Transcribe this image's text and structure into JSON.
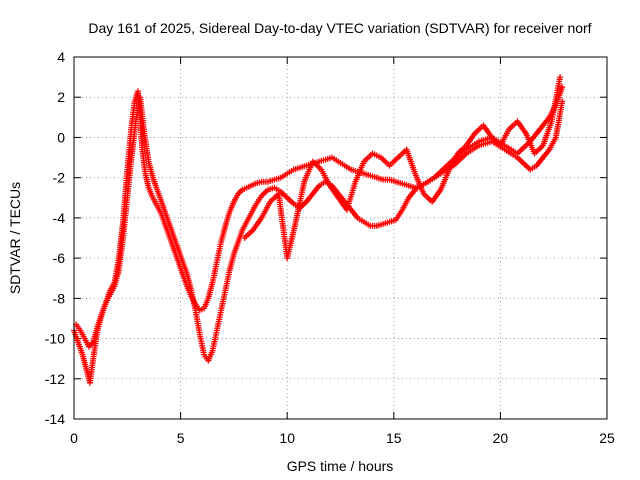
{
  "chart_data": {
    "type": "scatter",
    "title": "Day 161 of 2025, Sidereal Day-to-day VTEC variation (SDTVAR) for receiver norf",
    "xlabel": "GPS time / hours",
    "ylabel": "SDTVAR / TECUs",
    "xlim": [
      0,
      25
    ],
    "ylim": [
      -14,
      4
    ],
    "xticks": [
      0,
      5,
      10,
      15,
      20,
      25
    ],
    "yticks": [
      -14,
      -12,
      -10,
      -8,
      -6,
      -4,
      -2,
      0,
      2,
      4
    ],
    "grid": true,
    "marker": "+",
    "marker_color": "#ff0000",
    "series": [
      {
        "name": "SDTVAR",
        "x": [
          0.0,
          0.2,
          0.4,
          0.6,
          0.75,
          0.9,
          1.1,
          1.3,
          1.5,
          1.7,
          1.9,
          2.1,
          2.3,
          2.5,
          2.7,
          2.85,
          3.0,
          3.1,
          3.2,
          3.35,
          3.5,
          3.7,
          3.9,
          4.1,
          4.3,
          4.5,
          4.7,
          4.9,
          5.1,
          5.3,
          5.5,
          5.7,
          5.9,
          6.1,
          6.3,
          6.5,
          6.7,
          6.9,
          7.1,
          7.3,
          7.5,
          7.7,
          7.9,
          8.1,
          8.3,
          8.5,
          8.8,
          9.1,
          9.4,
          9.7,
          10.0,
          10.3,
          10.6,
          10.9,
          11.2,
          11.5,
          11.8,
          12.1,
          12.4,
          12.7,
          13.0,
          13.3,
          13.6,
          13.9,
          14.2,
          14.5,
          14.8,
          15.1,
          15.4,
          15.7,
          16.0,
          16.3,
          16.6,
          16.9,
          17.2,
          17.5,
          17.8,
          18.1,
          18.4,
          18.7,
          19.0,
          19.3,
          19.6,
          19.9,
          20.2,
          20.5,
          20.8,
          21.1,
          21.4,
          21.7,
          22.0,
          22.3,
          22.6,
          22.9
        ],
        "y": [
          -9.6,
          -10.2,
          -10.8,
          -11.6,
          -12.2,
          -11.0,
          -9.6,
          -8.8,
          -8.2,
          -7.6,
          -7.2,
          -6.0,
          -4.2,
          -1.6,
          0.6,
          1.8,
          2.3,
          1.0,
          -0.6,
          -1.8,
          -2.5,
          -3.0,
          -3.4,
          -3.8,
          -4.4,
          -5.0,
          -5.6,
          -6.2,
          -6.8,
          -7.4,
          -7.9,
          -8.3,
          -8.6,
          -8.5,
          -8.0,
          -7.2,
          -6.2,
          -5.2,
          -4.4,
          -3.7,
          -3.2,
          -2.8,
          -2.6,
          -2.5,
          -2.4,
          -2.3,
          -2.2,
          -2.2,
          -2.1,
          -2.0,
          -1.8,
          -1.6,
          -1.5,
          -1.4,
          -1.3,
          -1.2,
          -1.1,
          -1.0,
          -1.2,
          -1.4,
          -1.6,
          -1.7,
          -1.8,
          -1.9,
          -2.0,
          -2.1,
          -2.1,
          -2.2,
          -2.3,
          -2.4,
          -2.5,
          -2.4,
          -2.2,
          -2.0,
          -1.7,
          -1.4,
          -1.1,
          -0.8,
          -0.6,
          -0.4,
          -0.2,
          -0.1,
          0.0,
          -0.2,
          -0.4,
          -0.6,
          -0.8,
          -0.5,
          -0.2,
          0.2,
          0.6,
          1.0,
          1.6,
          2.5
        ]
      },
      {
        "name": "SDTVAR",
        "x": [
          0.1,
          0.3,
          0.5,
          0.7,
          0.9,
          1.1,
          1.3,
          1.5,
          1.7,
          1.9,
          2.1,
          2.3,
          2.5,
          2.7,
          2.9,
          3.1,
          3.3,
          3.5,
          3.7,
          3.9,
          4.1,
          4.3,
          4.5,
          4.7,
          4.9,
          5.1,
          5.3,
          5.5,
          5.7,
          5.9,
          6.1,
          6.3,
          6.5,
          6.7,
          6.9,
          7.1,
          7.3,
          7.5,
          7.7,
          7.9,
          8.2,
          8.5,
          8.8,
          9.1,
          9.4,
          9.7,
          10.0,
          10.3,
          10.6,
          10.9,
          11.2,
          11.5,
          11.8,
          12.1,
          12.4,
          12.7,
          13.0,
          13.3,
          13.6,
          13.9,
          14.2,
          14.5,
          14.8,
          15.1,
          15.4,
          15.7,
          16.0,
          16.3,
          16.6,
          16.9,
          17.2,
          17.5,
          17.8,
          18.1,
          18.4,
          18.7,
          19.0,
          19.3,
          19.6,
          19.9,
          20.2,
          20.5,
          20.8,
          21.1,
          21.4,
          21.7,
          22.0,
          22.3,
          22.6,
          22.9
        ],
        "y": [
          -9.3,
          -9.6,
          -10.0,
          -10.4,
          -10.2,
          -9.4,
          -8.8,
          -8.2,
          -7.8,
          -7.4,
          -6.6,
          -5.0,
          -3.0,
          -1.0,
          0.8,
          2.0,
          0.2,
          -1.2,
          -2.0,
          -2.6,
          -3.2,
          -3.8,
          -4.4,
          -5.0,
          -5.6,
          -6.2,
          -6.8,
          -7.6,
          -8.6,
          -9.8,
          -10.8,
          -11.1,
          -10.6,
          -9.6,
          -8.6,
          -7.6,
          -6.6,
          -5.8,
          -5.2,
          -4.6,
          -4.0,
          -3.4,
          -2.9,
          -2.6,
          -2.5,
          -2.7,
          -3.0,
          -3.3,
          -3.5,
          -3.2,
          -2.8,
          -2.4,
          -2.2,
          -2.4,
          -2.8,
          -3.2,
          -3.6,
          -4.0,
          -4.2,
          -4.4,
          -4.4,
          -4.3,
          -4.2,
          -4.1,
          -3.6,
          -3.0,
          -2.6,
          -2.4,
          -2.2,
          -2.0,
          -1.8,
          -1.6,
          -1.4,
          -1.1,
          -0.8,
          -0.6,
          -0.4,
          -0.3,
          -0.2,
          -0.4,
          -0.6,
          -0.8,
          -1.0,
          -1.3,
          -1.6,
          -1.4,
          -1.0,
          -0.6,
          0.0,
          1.8
        ]
      },
      {
        "name": "SDTVAR",
        "x": [
          8.0,
          8.4,
          8.8,
          9.2,
          9.6,
          10.0,
          10.4,
          10.8,
          11.2,
          11.6,
          12.0,
          12.4,
          12.8,
          13.2,
          13.6,
          14.0,
          14.4,
          14.8,
          15.2,
          15.6,
          16.0,
          16.4,
          16.8,
          17.2,
          17.6,
          18.0,
          18.4,
          18.8,
          19.2,
          19.6,
          20.0,
          20.4,
          20.8,
          21.2,
          21.6,
          22.0,
          22.4,
          22.8
        ],
        "y": [
          -5.0,
          -4.6,
          -4.0,
          -3.2,
          -2.8,
          -6.0,
          -4.2,
          -2.2,
          -1.2,
          -1.6,
          -2.4,
          -3.0,
          -3.6,
          -2.2,
          -1.2,
          -0.8,
          -1.0,
          -1.4,
          -1.0,
          -0.6,
          -1.8,
          -2.8,
          -3.2,
          -2.6,
          -1.6,
          -0.8,
          -0.4,
          0.2,
          0.6,
          0.0,
          -0.4,
          0.4,
          0.8,
          0.2,
          -0.8,
          -0.4,
          0.8,
          3.0
        ]
      }
    ]
  }
}
